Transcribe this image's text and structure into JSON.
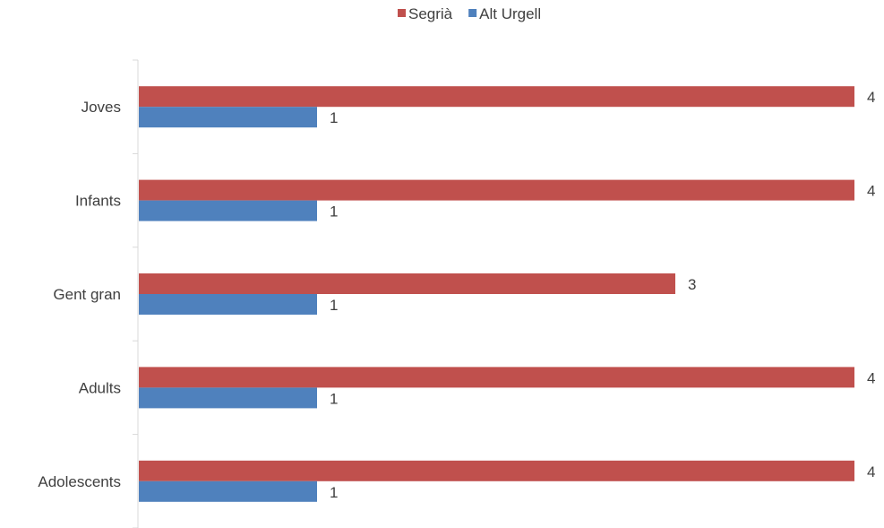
{
  "chart_data": {
    "type": "bar",
    "orientation": "horizontal",
    "categories": [
      "Joves",
      "Infants",
      "Gent gran",
      "Adults",
      "Adolescents"
    ],
    "series": [
      {
        "name": "Segrià",
        "values": [
          4,
          4,
          3,
          4,
          4
        ],
        "color": "#c0504d"
      },
      {
        "name": "Alt Urgell",
        "values": [
          1,
          1,
          1,
          1,
          1
        ],
        "color": "#4f81bd"
      }
    ],
    "xlim": [
      0,
      4
    ],
    "grid": false,
    "legend_position": "top",
    "data_labels": true
  }
}
